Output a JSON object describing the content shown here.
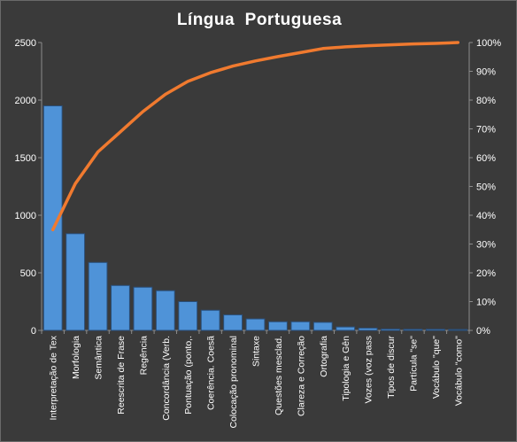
{
  "chart_data": {
    "type": "bar",
    "title": "Língua  Portuguesa",
    "categories": [
      "Interpretação de Tex",
      "Morfologia",
      "Semântica",
      "Reescrita de Frase",
      "Regência",
      "Concordância (Verb.",
      "Pontuação (ponto,.",
      "Coerência. Coesã",
      "Colocação pronominal",
      "Sintaxe",
      "Questões mesclad.",
      "Clareza e Correção",
      "Ortografia",
      "Tipologia e Gên",
      "Vozes (voz pass",
      "Tipos de discur",
      "Partícula \"se\"",
      "Vocábulo \"que\"",
      "Vocábulo \"como\""
    ],
    "series": [
      {
        "type": "bar",
        "axis": "left",
        "values": [
          1950,
          840,
          590,
          390,
          375,
          345,
          250,
          175,
          135,
          100,
          75,
          75,
          70,
          30,
          20,
          12,
          10,
          10,
          8
        ]
      },
      {
        "type": "line",
        "axis": "right",
        "values": [
          0.35,
          0.51,
          0.62,
          0.69,
          0.76,
          0.82,
          0.865,
          0.895,
          0.918,
          0.936,
          0.951,
          0.965,
          0.979,
          0.985,
          0.989,
          0.992,
          0.995,
          0.997,
          1.0
        ]
      }
    ],
    "y_left": {
      "min": 0,
      "max": 2500,
      "ticks": [
        0,
        500,
        1000,
        1500,
        2000,
        2500
      ]
    },
    "y_right": {
      "min": 0,
      "max": 1,
      "ticks": [
        0,
        0.1,
        0.2,
        0.3,
        0.4,
        0.5,
        0.6,
        0.7,
        0.8,
        0.9,
        1.0
      ],
      "tick_labels": [
        "0%",
        "10%",
        "20%",
        "30%",
        "40%",
        "50%",
        "60%",
        "70%",
        "80%",
        "90%",
        "100%"
      ]
    },
    "grid": false,
    "colors": {
      "background": "#3a3a3a",
      "bar_fill": "#4f93d8",
      "bar_stroke": "#2a4f7a",
      "line": "#f07a2f",
      "axis": "#8c8c8c",
      "text": "#ffffff"
    }
  }
}
